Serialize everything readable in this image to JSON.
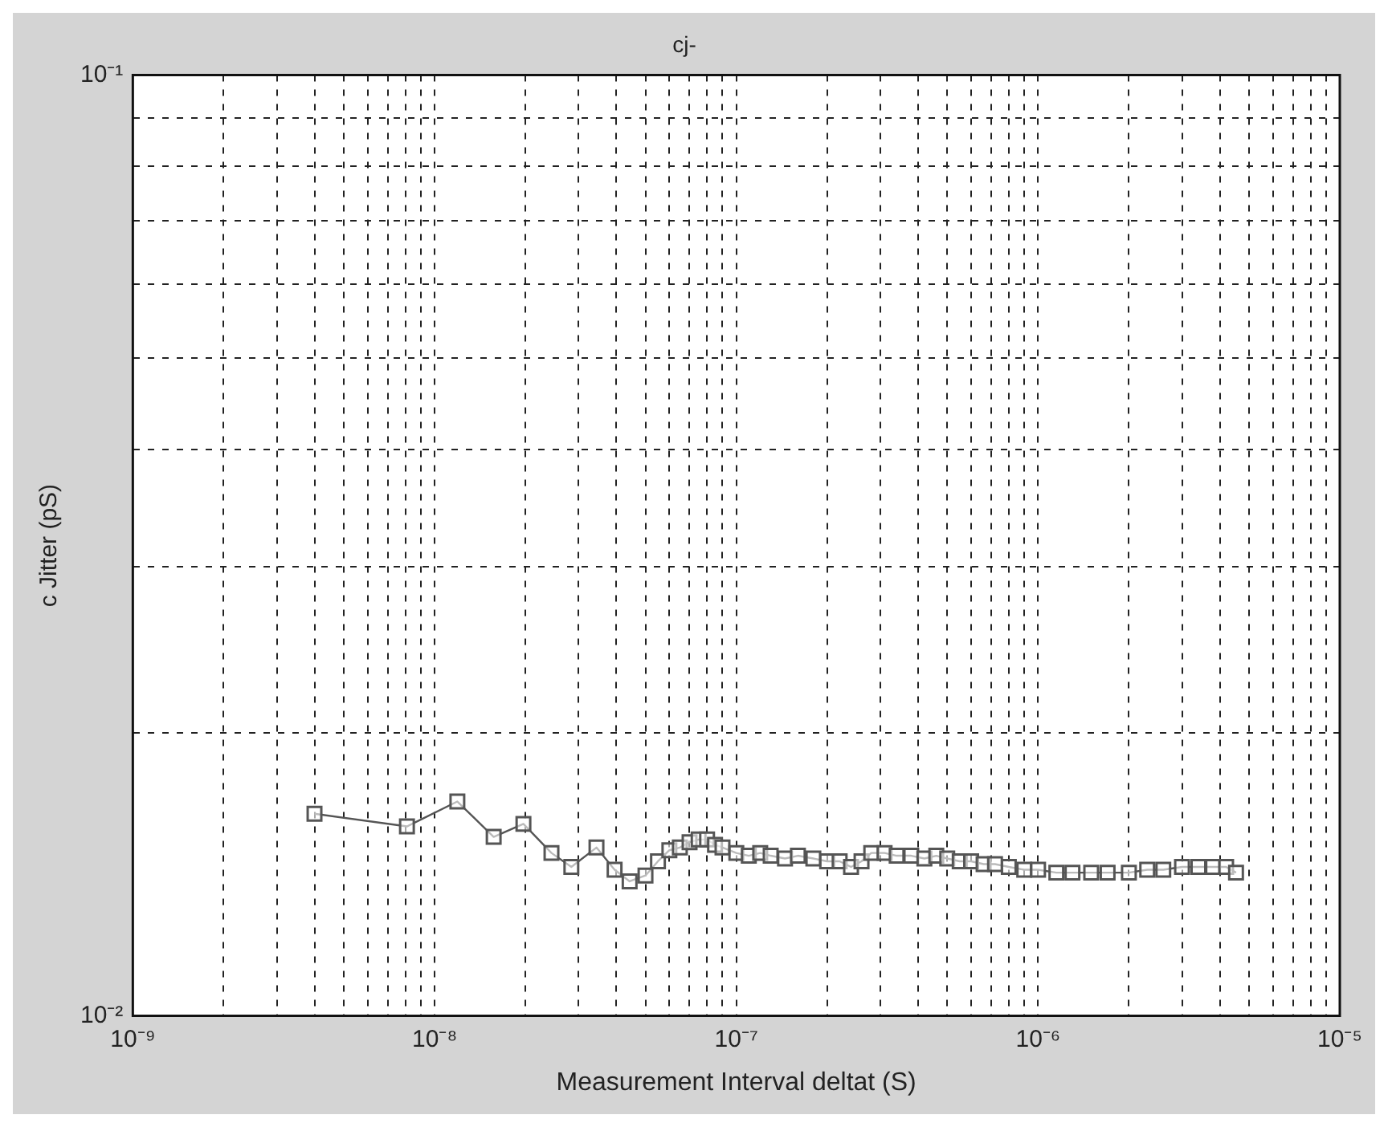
{
  "chart_data": {
    "type": "line",
    "title": "cj-",
    "xlabel": "Measurement Interval deltat (S)",
    "ylabel": "c Jitter (pS)",
    "log": "xy",
    "grid": true,
    "marker": "square",
    "line_style": "solid",
    "xlim": [
      1e-09,
      1e-05
    ],
    "ylim": [
      0.01,
      0.1
    ],
    "xticks": [
      {
        "value": 1e-09,
        "label": "10⁻⁹"
      },
      {
        "value": 2e-09,
        "label": null
      },
      {
        "value": 3e-09,
        "label": null
      },
      {
        "value": 4e-09,
        "label": null
      },
      {
        "value": 5e-09,
        "label": null
      },
      {
        "value": 6e-09,
        "label": null
      },
      {
        "value": 7e-09,
        "label": null
      },
      {
        "value": 8e-09,
        "label": null
      },
      {
        "value": 9e-09,
        "label": null
      },
      {
        "value": 1e-08,
        "label": "10⁻⁸"
      },
      {
        "value": 2e-08,
        "label": null
      },
      {
        "value": 3e-08,
        "label": null
      },
      {
        "value": 4e-08,
        "label": null
      },
      {
        "value": 5e-08,
        "label": null
      },
      {
        "value": 6e-08,
        "label": null
      },
      {
        "value": 7e-08,
        "label": null
      },
      {
        "value": 8e-08,
        "label": null
      },
      {
        "value": 9e-08,
        "label": null
      },
      {
        "value": 1e-07,
        "label": "10⁻⁷"
      },
      {
        "value": 2e-07,
        "label": null
      },
      {
        "value": 3e-07,
        "label": null
      },
      {
        "value": 4e-07,
        "label": null
      },
      {
        "value": 5e-07,
        "label": null
      },
      {
        "value": 6e-07,
        "label": null
      },
      {
        "value": 7e-07,
        "label": null
      },
      {
        "value": 8e-07,
        "label": null
      },
      {
        "value": 9e-07,
        "label": null
      },
      {
        "value": 1e-06,
        "label": "10⁻⁶"
      },
      {
        "value": 2e-06,
        "label": null
      },
      {
        "value": 3e-06,
        "label": null
      },
      {
        "value": 4e-06,
        "label": null
      },
      {
        "value": 5e-06,
        "label": null
      },
      {
        "value": 6e-06,
        "label": null
      },
      {
        "value": 7e-06,
        "label": null
      },
      {
        "value": 8e-06,
        "label": null
      },
      {
        "value": 9e-06,
        "label": null
      },
      {
        "value": 1e-05,
        "label": "10⁻⁵"
      }
    ],
    "yticks": [
      {
        "value": 0.01,
        "label": "10⁻²"
      },
      {
        "value": 0.02,
        "label": null
      },
      {
        "value": 0.03,
        "label": null
      },
      {
        "value": 0.04,
        "label": null
      },
      {
        "value": 0.05,
        "label": null
      },
      {
        "value": 0.06,
        "label": null
      },
      {
        "value": 0.07,
        "label": null
      },
      {
        "value": 0.08,
        "label": null
      },
      {
        "value": 0.09,
        "label": null
      },
      {
        "value": 0.1,
        "label": "10⁻¹"
      }
    ],
    "x": [
      4e-09,
      8.1e-09,
      1.19e-08,
      1.57e-08,
      1.97e-08,
      2.44e-08,
      2.84e-08,
      3.44e-08,
      3.95e-08,
      4.43e-08,
      5e-08,
      5.5e-08,
      6e-08,
      6.5e-08,
      7e-08,
      7.5e-08,
      8e-08,
      8.5e-08,
      9e-08,
      1e-07,
      1.1e-07,
      1.2e-07,
      1.3e-07,
      1.45e-07,
      1.6e-07,
      1.8e-07,
      2e-07,
      2.2e-07,
      2.4e-07,
      2.6e-07,
      2.8e-07,
      3.1e-07,
      3.4e-07,
      3.8e-07,
      4.2e-07,
      4.6e-07,
      5e-07,
      5.5e-07,
      6e-07,
      6.6e-07,
      7.2e-07,
      8e-07,
      9e-07,
      1e-06,
      1.15e-06,
      1.3e-06,
      1.5e-06,
      1.7e-06,
      2e-06,
      2.3e-06,
      2.6e-06,
      3e-06,
      3.4e-06,
      3.8e-06,
      4.2e-06,
      4.53e-06
    ],
    "series": [
      {
        "color": "#555555",
        "values": [
          0.0164,
          0.0159,
          0.0169,
          0.0155,
          0.016,
          0.0149,
          0.0144,
          0.0151,
          0.0143,
          0.0139,
          0.0141,
          0.0146,
          0.015,
          0.0151,
          0.0153,
          0.0154,
          0.0154,
          0.0152,
          0.0151,
          0.0149,
          0.0148,
          0.0149,
          0.0148,
          0.0147,
          0.0148,
          0.0147,
          0.0146,
          0.0146,
          0.0144,
          0.0146,
          0.0149,
          0.0149,
          0.0148,
          0.0148,
          0.0147,
          0.0148,
          0.0147,
          0.0146,
          0.0146,
          0.0145,
          0.0145,
          0.0144,
          0.0143,
          0.0143,
          0.0142,
          0.0142,
          0.0142,
          0.0142,
          0.0142,
          0.0143,
          0.0143,
          0.0144,
          0.0144,
          0.0144,
          0.0144,
          0.0142
        ]
      }
    ]
  }
}
